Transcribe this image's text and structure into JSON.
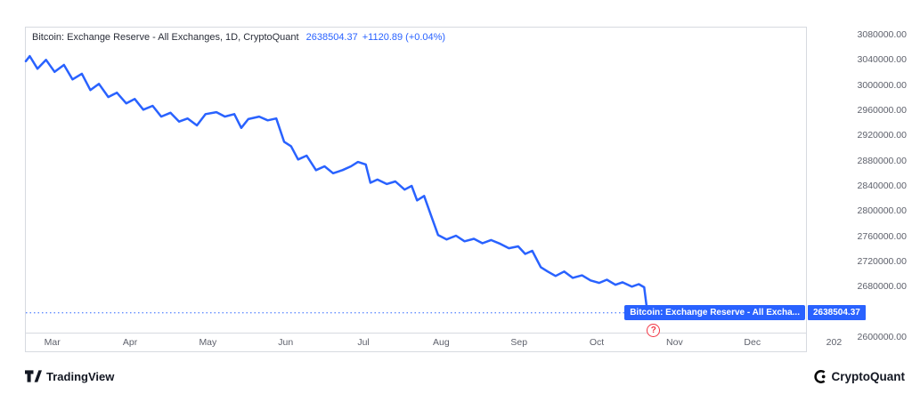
{
  "header": {
    "title": "Bitcoin: Exchange Reserve - All Exchanges, 1D, CryptoQuant",
    "value": "2638504.37",
    "change": "+1120.89 (+0.04%)"
  },
  "colors": {
    "line": "#2962ff",
    "accent": "#2962ff",
    "tag_bg": "#2962ff",
    "marker_red": "#f23645",
    "axis_text": "#5d606b",
    "border": "#d7dae0"
  },
  "chart_data": {
    "type": "line",
    "title": "Bitcoin: Exchange Reserve - All Exchanges, 1D, CryptoQuant",
    "xlabel": "",
    "ylabel": "",
    "grid": false,
    "legend_position": "none",
    "x_unit": "month index (3=Mar, 12=Dec)",
    "x_range": [
      2.66,
      12.69
    ],
    "ylim": [
      2600000,
      3080000
    ],
    "last_value": 2638504.37,
    "x": [
      2.66,
      2.71,
      2.81,
      2.92,
      3.03,
      3.15,
      3.26,
      3.38,
      3.49,
      3.6,
      3.72,
      3.83,
      3.95,
      4.06,
      4.17,
      4.29,
      4.4,
      4.52,
      4.63,
      4.74,
      4.86,
      4.97,
      5.11,
      5.22,
      5.34,
      5.43,
      5.52,
      5.66,
      5.77,
      5.88,
      5.98,
      6.07,
      6.16,
      6.27,
      6.39,
      6.5,
      6.61,
      6.73,
      6.84,
      6.93,
      7.03,
      7.09,
      7.18,
      7.3,
      7.41,
      7.53,
      7.62,
      7.69,
      7.78,
      7.87,
      7.96,
      8.07,
      8.19,
      8.3,
      8.42,
      8.53,
      8.64,
      8.76,
      8.87,
      8.99,
      9.08,
      9.17,
      9.28,
      9.37,
      9.47,
      9.58,
      9.69,
      9.81,
      9.92,
      10.03,
      10.13,
      10.24,
      10.33,
      10.45,
      10.54,
      10.61,
      10.65,
      10.69
    ],
    "values": [
      3038000,
      3046000,
      3026000,
      3040000,
      3021000,
      3032000,
      3009000,
      3018000,
      2992000,
      3002000,
      2981000,
      2988000,
      2971000,
      2978000,
      2961000,
      2967000,
      2950000,
      2956000,
      2942000,
      2947000,
      2936000,
      2954000,
      2957000,
      2950000,
      2954000,
      2932000,
      2946000,
      2950000,
      2944000,
      2947000,
      2910000,
      2903000,
      2882000,
      2888000,
      2865000,
      2871000,
      2860000,
      2865000,
      2871000,
      2878000,
      2874000,
      2845000,
      2850000,
      2843000,
      2847000,
      2834000,
      2840000,
      2817000,
      2824000,
      2793000,
      2762000,
      2755000,
      2761000,
      2752000,
      2756000,
      2749000,
      2754000,
      2748000,
      2741000,
      2744000,
      2732000,
      2737000,
      2711000,
      2704000,
      2697000,
      2704000,
      2694000,
      2698000,
      2690000,
      2686000,
      2691000,
      2683000,
      2687000,
      2680000,
      2684000,
      2679000,
      2640000,
      2638504.37
    ],
    "x_ticks": [
      {
        "t": 3,
        "label": "Mar"
      },
      {
        "t": 4,
        "label": "Apr"
      },
      {
        "t": 5,
        "label": "May"
      },
      {
        "t": 6,
        "label": "Jun"
      },
      {
        "t": 7,
        "label": "Jul"
      },
      {
        "t": 8,
        "label": "Aug"
      },
      {
        "t": 9,
        "label": "Sep"
      },
      {
        "t": 10,
        "label": "Oct"
      },
      {
        "t": 11,
        "label": "Nov"
      },
      {
        "t": 12,
        "label": "Dec"
      },
      {
        "t": 13.05,
        "label": "202"
      }
    ],
    "y_ticks": [
      {
        "value": 3080000,
        "label": "3080000.00"
      },
      {
        "value": 3040000,
        "label": "3040000.00"
      },
      {
        "value": 3000000,
        "label": "3000000.00"
      },
      {
        "value": 2960000,
        "label": "2960000.00"
      },
      {
        "value": 2920000,
        "label": "2920000.00"
      },
      {
        "value": 2880000,
        "label": "2880000.00"
      },
      {
        "value": 2840000,
        "label": "2840000.00"
      },
      {
        "value": 2800000,
        "label": "2800000.00"
      },
      {
        "value": 2760000,
        "label": "2760000.00"
      },
      {
        "value": 2720000,
        "label": "2720000.00"
      },
      {
        "value": 2680000,
        "label": "2680000.00"
      },
      {
        "value": 2600000,
        "label": "2600000.00"
      }
    ]
  },
  "series_label": {
    "text": "Bitcoin: Exchange Reserve - All Excha..."
  },
  "price_tag": {
    "label": "2638504.37"
  },
  "marker": {
    "symbol": "?"
  },
  "footer": {
    "left_brand": "TradingView",
    "right_brand": "CryptoQuant"
  }
}
